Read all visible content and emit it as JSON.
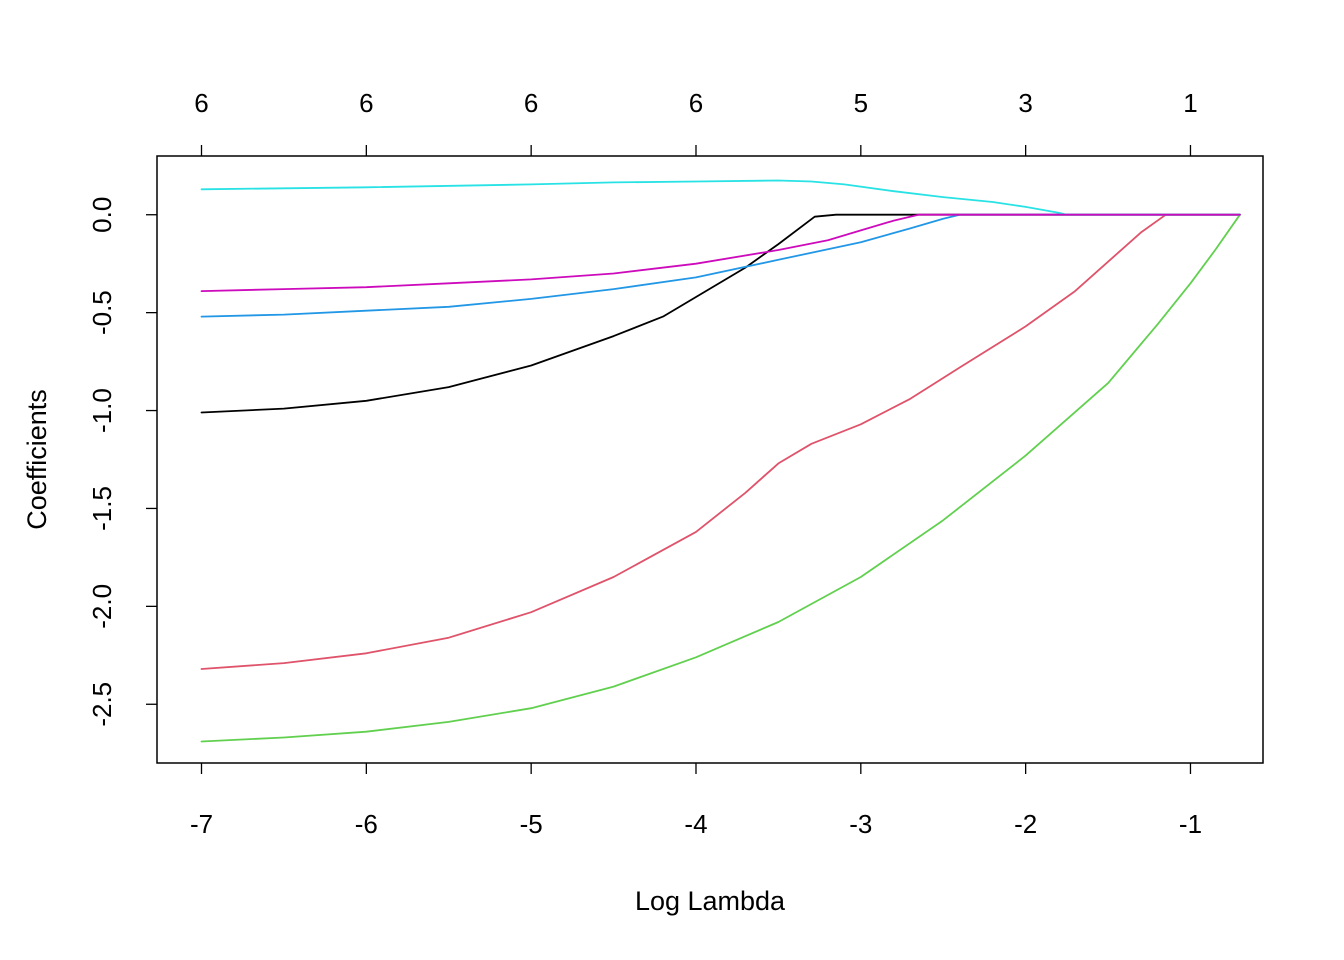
{
  "chart_data": {
    "type": "line",
    "title": "",
    "xlabel": "Log Lambda",
    "ylabel": "Coefficients",
    "xlim": [
      -7.27,
      -0.56
    ],
    "ylim": [
      -2.8,
      0.3
    ],
    "grid": false,
    "x_ticks": [
      -7,
      -6,
      -5,
      -4,
      -3,
      -2,
      -1
    ],
    "x_tick_labels": [
      "-7",
      "-6",
      "-5",
      "-4",
      "-3",
      "-2",
      "-1"
    ],
    "y_ticks": [
      0.0,
      -0.5,
      -1.0,
      -1.5,
      -2.0,
      -2.5
    ],
    "y_tick_labels": [
      "0.0",
      "-0.5",
      "-1.0",
      "-1.5",
      "-2.0",
      "-2.5"
    ],
    "top_axis": {
      "ticks": [
        -7,
        -6,
        -5,
        -4,
        -3,
        -2,
        -1
      ],
      "labels": [
        "6",
        "6",
        "6",
        "6",
        "5",
        "3",
        "1"
      ]
    },
    "series": [
      {
        "color": "#000000",
        "points": [
          [
            -7,
            -1.01
          ],
          [
            -6.5,
            -0.99
          ],
          [
            -6,
            -0.95
          ],
          [
            -5.5,
            -0.88
          ],
          [
            -5,
            -0.77
          ],
          [
            -4.5,
            -0.62
          ],
          [
            -4.2,
            -0.52
          ],
          [
            -4,
            -0.42
          ],
          [
            -3.7,
            -0.27
          ],
          [
            -3.5,
            -0.15
          ],
          [
            -3.28,
            -0.01
          ],
          [
            -3.15,
            0.0
          ],
          [
            -2.5,
            0.0
          ],
          [
            -0.7,
            0.0
          ]
        ]
      },
      {
        "color": "#DF536B",
        "points": [
          [
            -7,
            -2.32
          ],
          [
            -6.5,
            -2.29
          ],
          [
            -6,
            -2.24
          ],
          [
            -5.5,
            -2.16
          ],
          [
            -5,
            -2.03
          ],
          [
            -4.5,
            -1.85
          ],
          [
            -4,
            -1.62
          ],
          [
            -3.7,
            -1.42
          ],
          [
            -3.5,
            -1.27
          ],
          [
            -3.3,
            -1.17
          ],
          [
            -3,
            -1.07
          ],
          [
            -2.7,
            -0.94
          ],
          [
            -2.4,
            -0.78
          ],
          [
            -2,
            -0.57
          ],
          [
            -1.7,
            -0.39
          ],
          [
            -1.5,
            -0.24
          ],
          [
            -1.3,
            -0.09
          ],
          [
            -1.15,
            0.0
          ],
          [
            -0.7,
            0.0
          ]
        ]
      },
      {
        "color": "#61D04F",
        "points": [
          [
            -7,
            -2.69
          ],
          [
            -6.5,
            -2.67
          ],
          [
            -6,
            -2.64
          ],
          [
            -5.5,
            -2.59
          ],
          [
            -5,
            -2.52
          ],
          [
            -4.5,
            -2.41
          ],
          [
            -4,
            -2.26
          ],
          [
            -3.5,
            -2.08
          ],
          [
            -3,
            -1.85
          ],
          [
            -2.5,
            -1.56
          ],
          [
            -2,
            -1.23
          ],
          [
            -1.5,
            -0.86
          ],
          [
            -1.2,
            -0.56
          ],
          [
            -1,
            -0.35
          ],
          [
            -0.85,
            -0.18
          ],
          [
            -0.7,
            0.0
          ]
        ]
      },
      {
        "color": "#2297E6",
        "points": [
          [
            -7,
            -0.52
          ],
          [
            -6.5,
            -0.51
          ],
          [
            -6,
            -0.49
          ],
          [
            -5.5,
            -0.47
          ],
          [
            -5,
            -0.43
          ],
          [
            -4.5,
            -0.38
          ],
          [
            -4,
            -0.32
          ],
          [
            -3.5,
            -0.23
          ],
          [
            -3,
            -0.14
          ],
          [
            -2.7,
            -0.07
          ],
          [
            -2.5,
            -0.02
          ],
          [
            -2.4,
            0.0
          ],
          [
            -0.7,
            0.0
          ]
        ]
      },
      {
        "color": "#28E2E5",
        "points": [
          [
            -7,
            0.13
          ],
          [
            -6,
            0.14
          ],
          [
            -5,
            0.155
          ],
          [
            -4.5,
            0.165
          ],
          [
            -4,
            0.17
          ],
          [
            -3.5,
            0.175
          ],
          [
            -3.3,
            0.17
          ],
          [
            -3.1,
            0.155
          ],
          [
            -2.8,
            0.12
          ],
          [
            -2.5,
            0.09
          ],
          [
            -2.2,
            0.065
          ],
          [
            -2,
            0.04
          ],
          [
            -1.8,
            0.01
          ],
          [
            -1.75,
            0.0
          ],
          [
            -0.7,
            0.0
          ]
        ]
      },
      {
        "color": "#CD0BBC",
        "points": [
          [
            -7,
            -0.39
          ],
          [
            -6.5,
            -0.38
          ],
          [
            -6,
            -0.37
          ],
          [
            -5.5,
            -0.35
          ],
          [
            -5,
            -0.33
          ],
          [
            -4.5,
            -0.3
          ],
          [
            -4,
            -0.25
          ],
          [
            -3.5,
            -0.18
          ],
          [
            -3.2,
            -0.13
          ],
          [
            -3,
            -0.08
          ],
          [
            -2.8,
            -0.03
          ],
          [
            -2.65,
            0.0
          ],
          [
            -0.7,
            0.0
          ]
        ]
      }
    ]
  }
}
